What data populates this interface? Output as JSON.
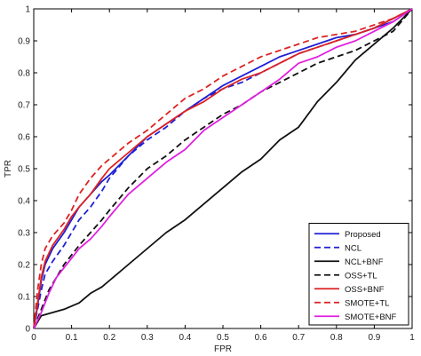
{
  "chart_data": {
    "type": "line",
    "title": "",
    "xlabel": "FPR",
    "ylabel": "TPR",
    "xlim": [
      0,
      1
    ],
    "ylim": [
      0,
      1
    ],
    "grid": false,
    "legend_position": "bottom-right",
    "x_ticks": [
      "0",
      "0.1",
      "0.2",
      "0.3",
      "0.4",
      "0.5",
      "0.6",
      "0.7",
      "0.8",
      "0.9",
      "1"
    ],
    "y_ticks": [
      "0",
      "0.1",
      "0.2",
      "0.3",
      "0.4",
      "0.5",
      "0.6",
      "0.7",
      "0.8",
      "0.9",
      "1"
    ],
    "series": [
      {
        "name": "Proposed",
        "color": "#1f1fd6",
        "dash": "solid",
        "x": [
          0,
          0.01,
          0.02,
          0.03,
          0.05,
          0.08,
          0.1,
          0.12,
          0.15,
          0.18,
          0.2,
          0.25,
          0.3,
          0.35,
          0.4,
          0.45,
          0.5,
          0.55,
          0.6,
          0.65,
          0.7,
          0.75,
          0.8,
          0.85,
          0.9,
          0.95,
          1
        ],
        "y": [
          0,
          0.07,
          0.15,
          0.2,
          0.25,
          0.3,
          0.34,
          0.38,
          0.42,
          0.46,
          0.48,
          0.54,
          0.6,
          0.64,
          0.68,
          0.72,
          0.76,
          0.79,
          0.82,
          0.85,
          0.87,
          0.89,
          0.91,
          0.92,
          0.94,
          0.96,
          1
        ]
      },
      {
        "name": "NCL",
        "color": "#1f1fd6",
        "dash": "dashed",
        "x": [
          0,
          0.01,
          0.02,
          0.03,
          0.05,
          0.08,
          0.1,
          0.12,
          0.15,
          0.18,
          0.2,
          0.25,
          0.3,
          0.35,
          0.4,
          0.45,
          0.5,
          0.55,
          0.6,
          0.65,
          0.7,
          0.75,
          0.8,
          0.85,
          0.9,
          0.95,
          1
        ],
        "y": [
          0,
          0.06,
          0.12,
          0.17,
          0.21,
          0.26,
          0.3,
          0.34,
          0.38,
          0.43,
          0.47,
          0.54,
          0.59,
          0.63,
          0.68,
          0.72,
          0.75,
          0.77,
          0.8,
          0.83,
          0.86,
          0.88,
          0.9,
          0.92,
          0.94,
          0.97,
          1
        ]
      },
      {
        "name": "NCL+BNF",
        "color": "#111111",
        "dash": "solid",
        "x": [
          0,
          0.02,
          0.05,
          0.08,
          0.1,
          0.12,
          0.15,
          0.18,
          0.2,
          0.25,
          0.3,
          0.35,
          0.4,
          0.45,
          0.5,
          0.55,
          0.6,
          0.65,
          0.7,
          0.75,
          0.8,
          0.85,
          0.9,
          0.95,
          1
        ],
        "y": [
          0,
          0.04,
          0.05,
          0.06,
          0.07,
          0.08,
          0.11,
          0.13,
          0.15,
          0.2,
          0.25,
          0.3,
          0.34,
          0.39,
          0.44,
          0.49,
          0.53,
          0.59,
          0.63,
          0.71,
          0.77,
          0.84,
          0.89,
          0.94,
          1
        ]
      },
      {
        "name": "OSS+TL",
        "color": "#111111",
        "dash": "dashed",
        "x": [
          0,
          0.02,
          0.04,
          0.06,
          0.08,
          0.1,
          0.12,
          0.15,
          0.18,
          0.2,
          0.25,
          0.3,
          0.35,
          0.4,
          0.45,
          0.5,
          0.55,
          0.6,
          0.65,
          0.7,
          0.75,
          0.8,
          0.85,
          0.9,
          0.95,
          1
        ],
        "y": [
          0,
          0.06,
          0.12,
          0.16,
          0.2,
          0.23,
          0.26,
          0.3,
          0.34,
          0.37,
          0.44,
          0.5,
          0.54,
          0.59,
          0.63,
          0.67,
          0.7,
          0.74,
          0.77,
          0.8,
          0.83,
          0.85,
          0.87,
          0.9,
          0.93,
          1
        ]
      },
      {
        "name": "OSS+BNF",
        "color": "#dd2222",
        "dash": "solid",
        "x": [
          0,
          0.01,
          0.02,
          0.03,
          0.05,
          0.08,
          0.1,
          0.12,
          0.15,
          0.18,
          0.2,
          0.25,
          0.3,
          0.35,
          0.4,
          0.45,
          0.5,
          0.55,
          0.6,
          0.65,
          0.7,
          0.75,
          0.8,
          0.85,
          0.9,
          0.95,
          1
        ],
        "y": [
          0,
          0.08,
          0.16,
          0.21,
          0.26,
          0.31,
          0.35,
          0.38,
          0.42,
          0.47,
          0.5,
          0.55,
          0.6,
          0.64,
          0.68,
          0.71,
          0.75,
          0.78,
          0.8,
          0.83,
          0.86,
          0.88,
          0.9,
          0.92,
          0.94,
          0.97,
          1
        ]
      },
      {
        "name": "SMOTE+TL",
        "color": "#dd2222",
        "dash": "dashed",
        "x": [
          0,
          0.01,
          0.02,
          0.03,
          0.05,
          0.08,
          0.1,
          0.12,
          0.15,
          0.18,
          0.2,
          0.25,
          0.3,
          0.35,
          0.4,
          0.45,
          0.5,
          0.55,
          0.6,
          0.65,
          0.7,
          0.75,
          0.8,
          0.85,
          0.9,
          0.95,
          1
        ],
        "y": [
          0,
          0.12,
          0.2,
          0.25,
          0.29,
          0.33,
          0.37,
          0.42,
          0.47,
          0.51,
          0.53,
          0.58,
          0.62,
          0.67,
          0.72,
          0.75,
          0.79,
          0.82,
          0.85,
          0.87,
          0.89,
          0.91,
          0.92,
          0.93,
          0.95,
          0.97,
          1
        ]
      },
      {
        "name": "SMOTE+BNF",
        "color": "#e020e0",
        "dash": "solid",
        "x": [
          0,
          0.02,
          0.04,
          0.06,
          0.08,
          0.1,
          0.12,
          0.15,
          0.18,
          0.2,
          0.25,
          0.3,
          0.35,
          0.4,
          0.45,
          0.5,
          0.55,
          0.6,
          0.65,
          0.7,
          0.75,
          0.8,
          0.85,
          0.9,
          0.95,
          1
        ],
        "y": [
          0,
          0.05,
          0.11,
          0.16,
          0.19,
          0.22,
          0.25,
          0.28,
          0.32,
          0.35,
          0.42,
          0.47,
          0.52,
          0.56,
          0.62,
          0.66,
          0.7,
          0.74,
          0.78,
          0.83,
          0.85,
          0.88,
          0.9,
          0.93,
          0.96,
          1
        ]
      }
    ]
  }
}
